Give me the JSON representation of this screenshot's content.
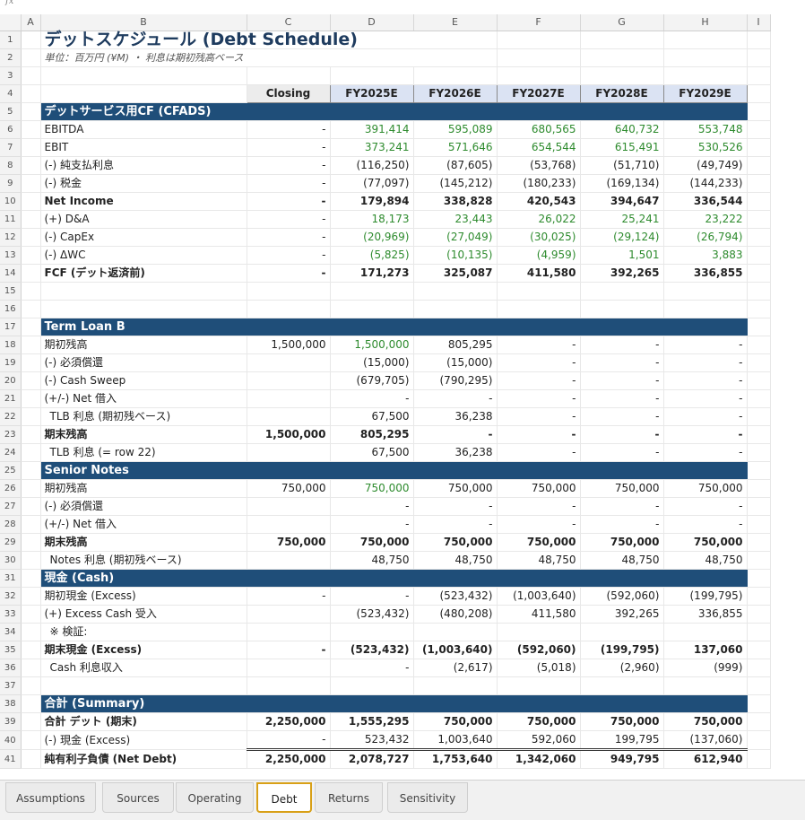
{
  "formula_bar": {
    "glyph": "fx"
  },
  "columns": [
    "",
    "A",
    "B",
    "C",
    "D",
    "E",
    "F",
    "G",
    "H",
    "I"
  ],
  "title": "デットスケジュール (Debt Schedule)",
  "subtitle": "単位：百万円 (¥M) ・ 利息は期初残高ベース",
  "col_headers": [
    "Closing",
    "FY2025E",
    "FY2026E",
    "FY2027E",
    "FY2028E",
    "FY2029E"
  ],
  "rows": [
    {
      "n": "5",
      "type": "section",
      "label": "デットサービス用CF (CFADS)"
    },
    {
      "n": "6",
      "label": "EBITDA",
      "vals": [
        "-",
        "391,414",
        "595,089",
        "680,565",
        "640,732",
        "553,748"
      ],
      "green": true
    },
    {
      "n": "7",
      "label": "EBIT",
      "vals": [
        "-",
        "373,241",
        "571,646",
        "654,544",
        "615,491",
        "530,526"
      ],
      "green": true
    },
    {
      "n": "8",
      "label": "(-) 純支払利息",
      "vals": [
        "-",
        "(116,250)",
        "(87,605)",
        "(53,768)",
        "(51,710)",
        "(49,749)"
      ]
    },
    {
      "n": "9",
      "label": "(-) 税金",
      "vals": [
        "-",
        "(77,097)",
        "(145,212)",
        "(180,233)",
        "(169,134)",
        "(144,233)"
      ]
    },
    {
      "n": "10",
      "label": "Net Income",
      "vals": [
        "-",
        "179,894",
        "338,828",
        "420,543",
        "394,647",
        "336,544"
      ],
      "bold": true,
      "topline": true
    },
    {
      "n": "11",
      "label": "(+) D&A",
      "vals": [
        "-",
        "18,173",
        "23,443",
        "26,022",
        "25,241",
        "23,222"
      ],
      "green": true
    },
    {
      "n": "12",
      "label": "(-) CapEx",
      "vals": [
        "-",
        "(20,969)",
        "(27,049)",
        "(30,025)",
        "(29,124)",
        "(26,794)"
      ],
      "green": true
    },
    {
      "n": "13",
      "label": "(-) ΔWC",
      "vals": [
        "-",
        "(5,825)",
        "(10,135)",
        "(4,959)",
        "1,501",
        "3,883"
      ],
      "green": true
    },
    {
      "n": "14",
      "label": "FCF (デット返済前)",
      "vals": [
        "-",
        "171,273",
        "325,087",
        "411,580",
        "392,265",
        "336,855"
      ],
      "bold": true,
      "topline": true
    },
    {
      "n": "15",
      "label": "",
      "vals": [
        "",
        "",
        "",
        "",
        "",
        ""
      ]
    },
    {
      "n": "16",
      "label": "",
      "vals": [
        "",
        "",
        "",
        "",
        "",
        ""
      ]
    },
    {
      "n": "17",
      "type": "section",
      "label": "Term Loan B"
    },
    {
      "n": "18",
      "label": "期初残高",
      "vals": [
        "1,500,000",
        "1,500,000",
        "805,295",
        "-",
        "-",
        "-"
      ],
      "greenD": true
    },
    {
      "n": "19",
      "label": "(-) 必須償還",
      "vals": [
        "",
        "(15,000)",
        "(15,000)",
        "-",
        "-",
        "-"
      ]
    },
    {
      "n": "20",
      "label": "(-) Cash Sweep",
      "vals": [
        "",
        "(679,705)",
        "(790,295)",
        "-",
        "-",
        "-"
      ]
    },
    {
      "n": "21",
      "label": "(+/-) Net 借入",
      "vals": [
        "",
        "-",
        "-",
        "-",
        "-",
        "-"
      ]
    },
    {
      "n": "22",
      "label": "TLB 利息 (期初残ベース)",
      "vals": [
        "",
        "67,500",
        "36,238",
        "-",
        "-",
        "-"
      ],
      "indent": true
    },
    {
      "n": "23",
      "label": "期末残高",
      "vals": [
        "1,500,000",
        "805,295",
        "-",
        "-",
        "-",
        "-"
      ],
      "bold": true,
      "topline": true
    },
    {
      "n": "24",
      "label": "TLB 利息 (= row 22)",
      "vals": [
        "",
        "67,500",
        "36,238",
        "-",
        "-",
        "-"
      ],
      "indent": true
    },
    {
      "n": "25",
      "type": "section",
      "label": "Senior Notes"
    },
    {
      "n": "26",
      "label": "期初残高",
      "vals": [
        "750,000",
        "750,000",
        "750,000",
        "750,000",
        "750,000",
        "750,000"
      ],
      "greenD": true
    },
    {
      "n": "27",
      "label": "(-) 必須償還",
      "vals": [
        "",
        "-",
        "-",
        "-",
        "-",
        "-"
      ]
    },
    {
      "n": "28",
      "label": "(+/-) Net 借入",
      "vals": [
        "",
        "-",
        "-",
        "-",
        "-",
        "-"
      ]
    },
    {
      "n": "29",
      "label": "期末残高",
      "vals": [
        "750,000",
        "750,000",
        "750,000",
        "750,000",
        "750,000",
        "750,000"
      ],
      "bold": true,
      "topline": true
    },
    {
      "n": "30",
      "label": "Notes 利息 (期初残ベース)",
      "vals": [
        "",
        "48,750",
        "48,750",
        "48,750",
        "48,750",
        "48,750"
      ],
      "indent": true
    },
    {
      "n": "31",
      "type": "section",
      "label": "現金 (Cash)"
    },
    {
      "n": "32",
      "label": "期初現金 (Excess)",
      "vals": [
        "-",
        "-",
        "(523,432)",
        "(1,003,640)",
        "(592,060)",
        "(199,795)"
      ]
    },
    {
      "n": "33",
      "label": "(+) Excess Cash 受入",
      "vals": [
        "",
        "(523,432)",
        "(480,208)",
        "411,580",
        "392,265",
        "336,855"
      ]
    },
    {
      "n": "34",
      "label": "※ 検証:",
      "vals": [
        "",
        "",
        "",
        "",
        "",
        ""
      ],
      "indent": true
    },
    {
      "n": "35",
      "label": "期末現金 (Excess)",
      "vals": [
        "-",
        "(523,432)",
        "(1,003,640)",
        "(592,060)",
        "(199,795)",
        "137,060"
      ],
      "bold": true,
      "topline": true
    },
    {
      "n": "36",
      "label": "Cash 利息収入",
      "vals": [
        "",
        "-",
        "(2,617)",
        "(5,018)",
        "(2,960)",
        "(999)"
      ],
      "indent": true
    },
    {
      "n": "37",
      "label": "",
      "vals": [
        "",
        "",
        "",
        "",
        "",
        ""
      ]
    },
    {
      "n": "38",
      "type": "section",
      "label": "合計 (Summary)"
    },
    {
      "n": "39",
      "label": "合計 デット (期末)",
      "vals": [
        "2,250,000",
        "1,555,295",
        "750,000",
        "750,000",
        "750,000",
        "750,000"
      ],
      "bold": true
    },
    {
      "n": "40",
      "label": "(-) 現金 (Excess)",
      "vals": [
        "-",
        "523,432",
        "1,003,640",
        "592,060",
        "199,795",
        "(137,060)"
      ]
    },
    {
      "n": "41",
      "label": "純有利子負債 (Net Debt)",
      "vals": [
        "2,250,000",
        "2,078,727",
        "1,753,640",
        "1,342,060",
        "949,795",
        "612,940"
      ],
      "bold": true,
      "dbl": true
    }
  ],
  "tabs": [
    {
      "label": "Assumptions",
      "active": false
    },
    {
      "label": "Sources",
      "active": false
    },
    {
      "label": "Operating",
      "active": false
    },
    {
      "label": "Debt",
      "active": true
    },
    {
      "label": "Returns",
      "active": false
    },
    {
      "label": "Sensitivity",
      "active": false
    }
  ]
}
